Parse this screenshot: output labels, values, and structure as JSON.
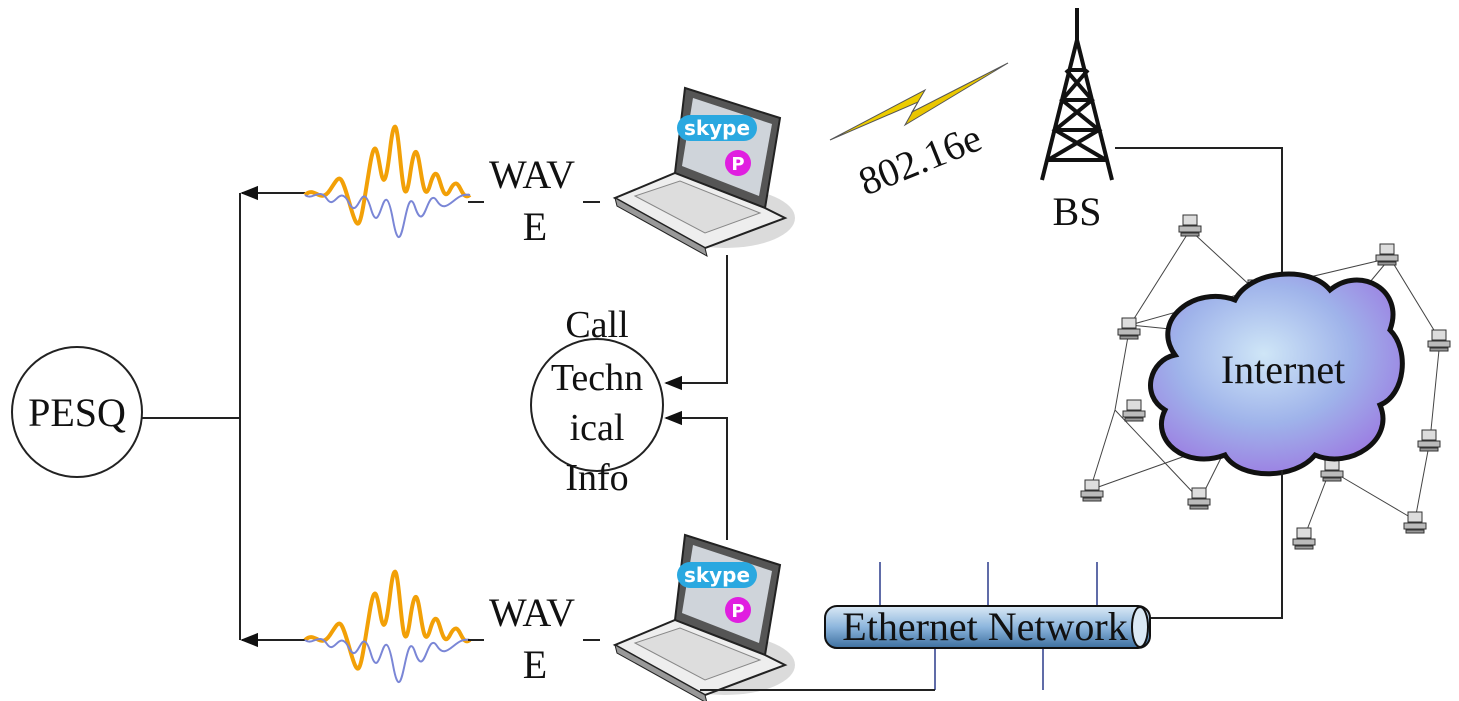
{
  "nodes": {
    "pesq": {
      "label": "PESQ"
    },
    "call_info": {
      "lines": [
        "Call",
        "Techn",
        "ical",
        "Info"
      ]
    },
    "wave_top": {
      "lines": [
        "WAV",
        "E"
      ]
    },
    "wave_bottom": {
      "lines": [
        "WAV",
        "E"
      ]
    },
    "laptop_top": {
      "app": "skype",
      "badge": "P"
    },
    "laptop_bottom": {
      "app": "skype",
      "badge": "P"
    },
    "wireless_link": {
      "label": "802.16e"
    },
    "base_station": {
      "label": "BS"
    },
    "internet": {
      "label": "Internet"
    },
    "ethernet": {
      "label": "Ethernet Network"
    }
  }
}
